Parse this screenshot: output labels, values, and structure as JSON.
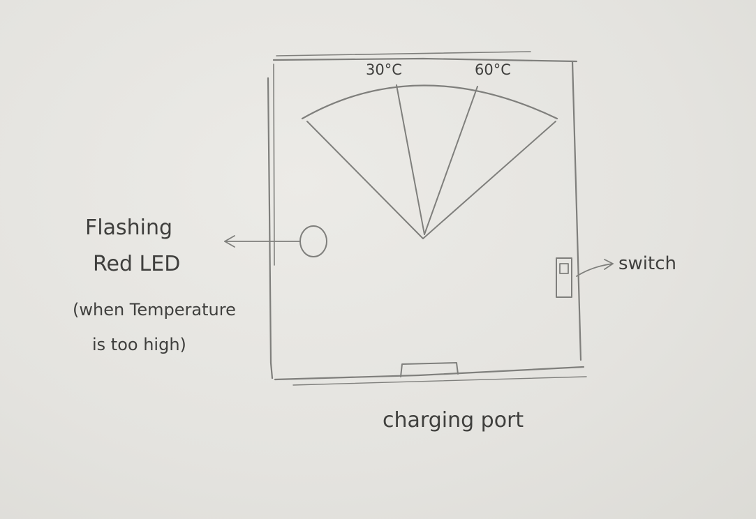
{
  "device": {
    "gauge": {
      "min_label": "30°C",
      "max_label": "60°C"
    },
    "led": {
      "label_line1": "Flashing",
      "label_line2": "Red LED",
      "note_line1": "(when Temperature",
      "note_line2": "is too high)"
    },
    "switch": {
      "label": "switch"
    },
    "charging_port": {
      "label": "charging port"
    }
  }
}
